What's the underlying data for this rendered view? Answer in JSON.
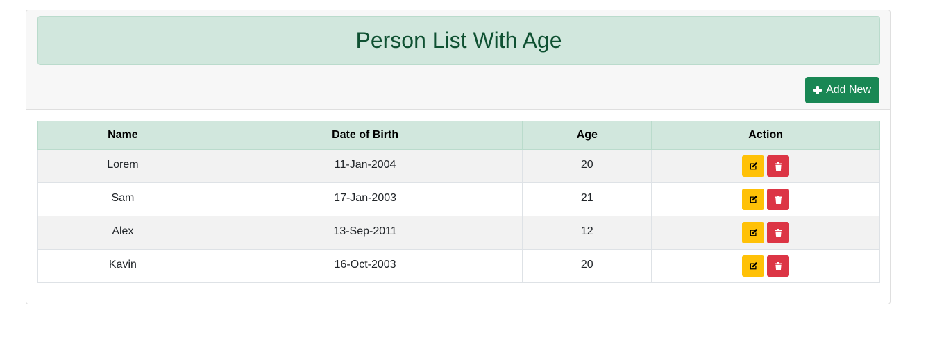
{
  "header": {
    "title": "Person List With Age",
    "add_label": "Add New",
    "add_icon": "plus-icon"
  },
  "table": {
    "columns": [
      "Name",
      "Date of Birth",
      "Age",
      "Action"
    ],
    "rows": [
      {
        "name": "Lorem",
        "dob": "11-Jan-2004",
        "age": "20"
      },
      {
        "name": "Sam",
        "dob": "17-Jan-2003",
        "age": "21"
      },
      {
        "name": "Alex",
        "dob": "13-Sep-2011",
        "age": "12"
      },
      {
        "name": "Kavin",
        "dob": "16-Oct-2003",
        "age": "20"
      }
    ],
    "row_actions": [
      "edit-icon",
      "trash-icon"
    ]
  },
  "colors": {
    "title_bg": "#d1e7dd",
    "title_text": "#0f5132",
    "add_button": "#198754",
    "edit_button": "#ffc107",
    "delete_button": "#dc3545"
  }
}
